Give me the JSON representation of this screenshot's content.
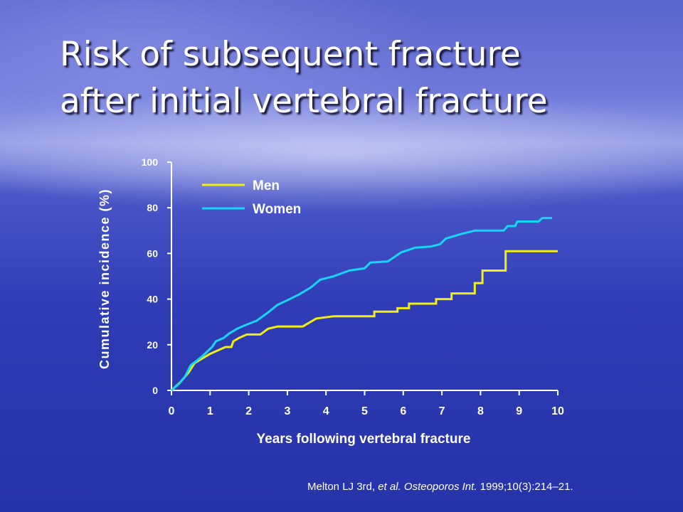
{
  "slide": {
    "title_line1": "Risk of subsequent fracture",
    "title_line2": "after initial vertebral fracture",
    "citation": {
      "author": "Melton LJ 3rd, ",
      "etal": "et al. Osteoporos Int.",
      "rest": " 1999;10(3):214–21."
    }
  },
  "chart_data": {
    "type": "line",
    "title": "",
    "xlabel": "Years following vertebral fracture",
    "ylabel": "Cumulative incidence (%)",
    "xlim": [
      0,
      10
    ],
    "ylim": [
      0,
      100
    ],
    "xticks": [
      0,
      1,
      2,
      3,
      4,
      5,
      6,
      7,
      8,
      9,
      10
    ],
    "yticks": [
      0,
      20,
      40,
      60,
      80,
      100
    ],
    "grid": false,
    "legend": "top-left",
    "series": [
      {
        "name": "Men",
        "color": "#f2ee10",
        "step": true,
        "points": [
          [
            0,
            0
          ],
          [
            0.25,
            4
          ],
          [
            0.45,
            8
          ],
          [
            0.6,
            12
          ],
          [
            0.8,
            14
          ],
          [
            1.0,
            16
          ],
          [
            1.2,
            17.5
          ],
          [
            1.4,
            19
          ],
          [
            1.55,
            19
          ],
          [
            1.6,
            21.5
          ],
          [
            1.75,
            23
          ],
          [
            1.95,
            24.5
          ],
          [
            2.3,
            24.5
          ],
          [
            2.5,
            27
          ],
          [
            2.75,
            28
          ],
          [
            3.4,
            28
          ],
          [
            3.75,
            31.5
          ],
          [
            4.2,
            32.5
          ],
          [
            5.25,
            32.5
          ],
          [
            5.25,
            34.5
          ],
          [
            5.85,
            34.5
          ],
          [
            5.85,
            36
          ],
          [
            6.15,
            36
          ],
          [
            6.15,
            38
          ],
          [
            6.85,
            38
          ],
          [
            6.85,
            40
          ],
          [
            7.25,
            40
          ],
          [
            7.25,
            42.5
          ],
          [
            7.85,
            42.5
          ],
          [
            7.85,
            47
          ],
          [
            8.05,
            47
          ],
          [
            8.05,
            52.5
          ],
          [
            8.65,
            52.5
          ],
          [
            8.65,
            61
          ],
          [
            10.0,
            61
          ]
        ]
      },
      {
        "name": "Women",
        "color": "#14d8f5",
        "step": false,
        "points": [
          [
            0,
            0
          ],
          [
            0.2,
            3
          ],
          [
            0.35,
            6
          ],
          [
            0.5,
            11
          ],
          [
            0.8,
            15
          ],
          [
            1.05,
            19
          ],
          [
            1.15,
            21.5
          ],
          [
            1.35,
            23
          ],
          [
            1.5,
            25
          ],
          [
            1.7,
            27
          ],
          [
            1.9,
            28.5
          ],
          [
            2.2,
            30.5
          ],
          [
            2.45,
            33.5
          ],
          [
            2.6,
            35.5
          ],
          [
            2.75,
            37.5
          ],
          [
            3.0,
            39.5
          ],
          [
            3.3,
            42
          ],
          [
            3.6,
            45
          ],
          [
            3.85,
            48.5
          ],
          [
            4.2,
            50
          ],
          [
            4.6,
            52.5
          ],
          [
            5.0,
            53.5
          ],
          [
            5.15,
            56
          ],
          [
            5.6,
            56.5
          ],
          [
            5.95,
            60.5
          ],
          [
            6.3,
            62.5
          ],
          [
            6.7,
            63
          ],
          [
            6.95,
            64
          ],
          [
            7.1,
            66.5
          ],
          [
            7.5,
            68.5
          ],
          [
            7.85,
            70
          ],
          [
            8.6,
            70
          ],
          [
            8.7,
            72
          ],
          [
            8.9,
            72
          ],
          [
            8.95,
            74
          ],
          [
            9.5,
            74
          ],
          [
            9.6,
            75.5
          ],
          [
            9.85,
            75.5
          ]
        ]
      }
    ]
  }
}
